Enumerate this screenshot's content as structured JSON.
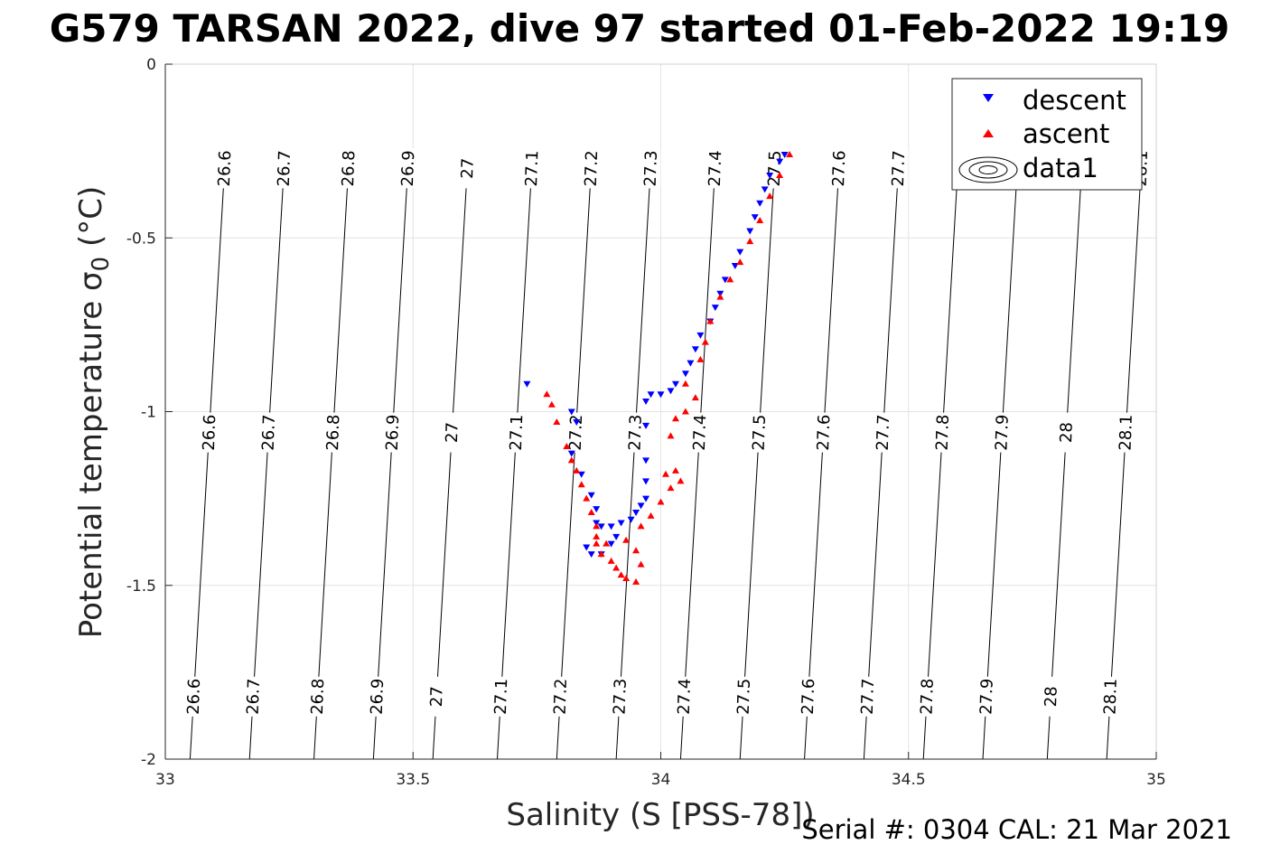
{
  "figure": {
    "title": "G579 TARSAN 2022, dive 97 started 01-Feb-2022 19:19",
    "serial_text": "Serial #: 0304  CAL: 21 Mar 2021"
  },
  "chart_data": {
    "type": "scatter",
    "title": "G579 TARSAN 2022, dive 97 started 01-Feb-2022 19:19",
    "xlabel": "Salinity (S [PSS-78])",
    "ylabel_main": "Potential temperature σ",
    "ylabel_sub": "0",
    "ylabel_unit": " (°C)",
    "xlim": [
      33,
      35
    ],
    "ylim": [
      -2,
      0
    ],
    "x_ticks": [
      33,
      33.5,
      34,
      34.5,
      35
    ],
    "x_tick_labels": [
      "33",
      "33.5",
      "34",
      "34.5",
      "35"
    ],
    "y_ticks": [
      0,
      -0.5,
      -1,
      -1.5,
      -2
    ],
    "y_tick_labels": [
      "0",
      "-0.5",
      "-1",
      "-1.5",
      "-2"
    ],
    "grid": true,
    "legend_position": "top-right",
    "legend": [
      {
        "label": "descent",
        "marker": "triangle-down",
        "color": "#0000ff"
      },
      {
        "label": "ascent",
        "marker": "triangle-up",
        "color": "#ff0000"
      },
      {
        "label": "data1",
        "marker": "contour",
        "color": "#000000"
      }
    ],
    "series": [
      {
        "name": "descent",
        "color": "#0000ff",
        "marker": "triangle-down",
        "points": [
          [
            33.73,
            -0.92
          ],
          [
            33.82,
            -1.0
          ],
          [
            33.83,
            -1.03
          ],
          [
            33.82,
            -1.12
          ],
          [
            33.84,
            -1.18
          ],
          [
            33.86,
            -1.24
          ],
          [
            33.87,
            -1.28
          ],
          [
            33.87,
            -1.32
          ],
          [
            33.88,
            -1.33
          ],
          [
            33.9,
            -1.33
          ],
          [
            33.92,
            -1.32
          ],
          [
            33.94,
            -1.31
          ],
          [
            33.95,
            -1.29
          ],
          [
            33.96,
            -1.27
          ],
          [
            33.97,
            -1.25
          ],
          [
            33.97,
            -1.2
          ],
          [
            33.97,
            -1.14
          ],
          [
            33.97,
            -1.04
          ],
          [
            33.97,
            -0.97
          ],
          [
            33.98,
            -0.95
          ],
          [
            34.0,
            -0.95
          ],
          [
            34.02,
            -0.94
          ],
          [
            34.03,
            -0.92
          ],
          [
            34.05,
            -0.89
          ],
          [
            34.06,
            -0.86
          ],
          [
            34.07,
            -0.82
          ],
          [
            34.08,
            -0.78
          ],
          [
            34.1,
            -0.74
          ],
          [
            34.11,
            -0.7
          ],
          [
            34.12,
            -0.66
          ],
          [
            34.13,
            -0.62
          ],
          [
            34.15,
            -0.58
          ],
          [
            34.16,
            -0.54
          ],
          [
            34.18,
            -0.48
          ],
          [
            34.19,
            -0.44
          ],
          [
            34.2,
            -0.4
          ],
          [
            34.21,
            -0.36
          ],
          [
            34.22,
            -0.32
          ],
          [
            34.24,
            -0.28
          ],
          [
            34.25,
            -0.26
          ],
          [
            33.85,
            -1.39
          ],
          [
            33.86,
            -1.41
          ],
          [
            33.88,
            -1.41
          ],
          [
            33.9,
            -1.38
          ],
          [
            33.91,
            -1.36
          ]
        ]
      },
      {
        "name": "ascent",
        "color": "#ff0000",
        "marker": "triangle-up",
        "points": [
          [
            33.77,
            -0.95
          ],
          [
            33.78,
            -0.98
          ],
          [
            33.79,
            -1.03
          ],
          [
            33.81,
            -1.1
          ],
          [
            33.82,
            -1.14
          ],
          [
            33.83,
            -1.17
          ],
          [
            33.84,
            -1.21
          ],
          [
            33.85,
            -1.25
          ],
          [
            33.86,
            -1.29
          ],
          [
            33.87,
            -1.33
          ],
          [
            33.87,
            -1.38
          ],
          [
            33.88,
            -1.41
          ],
          [
            33.9,
            -1.43
          ],
          [
            33.91,
            -1.45
          ],
          [
            33.92,
            -1.47
          ],
          [
            33.93,
            -1.48
          ],
          [
            33.95,
            -1.49
          ],
          [
            33.96,
            -1.44
          ],
          [
            33.95,
            -1.4
          ],
          [
            33.93,
            -1.37
          ],
          [
            33.96,
            -1.33
          ],
          [
            33.98,
            -1.3
          ],
          [
            34.0,
            -1.26
          ],
          [
            34.02,
            -1.22
          ],
          [
            34.04,
            -1.2
          ],
          [
            34.03,
            -1.17
          ],
          [
            34.01,
            -1.18
          ],
          [
            34.02,
            -1.07
          ],
          [
            34.03,
            -1.02
          ],
          [
            34.05,
            -1.0
          ],
          [
            34.07,
            -0.96
          ],
          [
            34.05,
            -0.92
          ],
          [
            34.08,
            -0.85
          ],
          [
            34.09,
            -0.8
          ],
          [
            34.1,
            -0.74
          ],
          [
            34.12,
            -0.67
          ],
          [
            34.14,
            -0.62
          ],
          [
            34.16,
            -0.57
          ],
          [
            34.18,
            -0.51
          ],
          [
            34.2,
            -0.45
          ],
          [
            34.22,
            -0.38
          ],
          [
            34.24,
            -0.32
          ],
          [
            34.26,
            -0.26
          ],
          [
            33.87,
            -1.36
          ],
          [
            33.89,
            -1.38
          ]
        ]
      }
    ],
    "contour_lines": [
      {
        "label": "26.6",
        "bottom": [
          33.05,
          -2
        ],
        "top": [
          33.12,
          -0.29
        ],
        "labels_at": [
          -1.82,
          -1.06,
          -0.3
        ]
      },
      {
        "label": "26.7",
        "bottom": [
          33.17,
          -2
        ],
        "top": [
          33.24,
          -0.29
        ],
        "labels_at": [
          -1.82,
          -1.06,
          -0.3
        ]
      },
      {
        "label": "26.8",
        "bottom": [
          33.3,
          -2
        ],
        "top": [
          33.37,
          -0.29
        ],
        "labels_at": [
          -1.82,
          -1.06,
          -0.3
        ]
      },
      {
        "label": "26.9",
        "bottom": [
          33.42,
          -2
        ],
        "top": [
          33.49,
          -0.29
        ],
        "labels_at": [
          -1.82,
          -1.06,
          -0.3
        ]
      },
      {
        "label": "27",
        "bottom": [
          33.54,
          -2
        ],
        "top": [
          33.61,
          -0.29
        ],
        "labels_at": [
          -1.82,
          -1.06,
          -0.3
        ]
      },
      {
        "label": "27.1",
        "bottom": [
          33.67,
          -2
        ],
        "top": [
          33.74,
          -0.29
        ],
        "labels_at": [
          -1.82,
          -1.06,
          -0.3
        ]
      },
      {
        "label": "27.2",
        "bottom": [
          33.79,
          -2
        ],
        "top": [
          33.86,
          -0.29
        ],
        "labels_at": [
          -1.82,
          -1.06,
          -0.3
        ]
      },
      {
        "label": "27.3",
        "bottom": [
          33.91,
          -2
        ],
        "top": [
          33.98,
          -0.29
        ],
        "labels_at": [
          -1.82,
          -1.06,
          -0.3
        ]
      },
      {
        "label": "27.4",
        "bottom": [
          34.04,
          -2
        ],
        "top": [
          34.11,
          -0.29
        ],
        "labels_at": [
          -1.82,
          -1.06,
          -0.3
        ]
      },
      {
        "label": "27.5",
        "bottom": [
          34.16,
          -2
        ],
        "top": [
          34.23,
          -0.29
        ],
        "labels_at": [
          -1.82,
          -1.06,
          -0.3
        ]
      },
      {
        "label": "27.6",
        "bottom": [
          34.29,
          -2
        ],
        "top": [
          34.36,
          -0.29
        ],
        "labels_at": [
          -1.82,
          -1.06,
          -0.3
        ]
      },
      {
        "label": "27.7",
        "bottom": [
          34.41,
          -2
        ],
        "top": [
          34.48,
          -0.29
        ],
        "labels_at": [
          -1.82,
          -1.06,
          -0.3
        ]
      },
      {
        "label": "27.8",
        "bottom": [
          34.53,
          -2
        ],
        "top": [
          34.6,
          -0.29
        ],
        "labels_at": [
          -1.82,
          -1.06
        ]
      },
      {
        "label": "27.9",
        "bottom": [
          34.65,
          -2
        ],
        "top": [
          34.72,
          -0.29
        ],
        "labels_at": [
          -1.82,
          -1.06
        ]
      },
      {
        "label": "28",
        "bottom": [
          34.78,
          -2
        ],
        "top": [
          34.85,
          -0.29
        ],
        "labels_at": [
          -1.82,
          -1.06
        ]
      },
      {
        "label": "28.1",
        "bottom": [
          34.9,
          -2
        ],
        "top": [
          34.97,
          -0.29
        ],
        "labels_at": [
          -1.82,
          -1.06,
          -0.3
        ]
      }
    ]
  }
}
